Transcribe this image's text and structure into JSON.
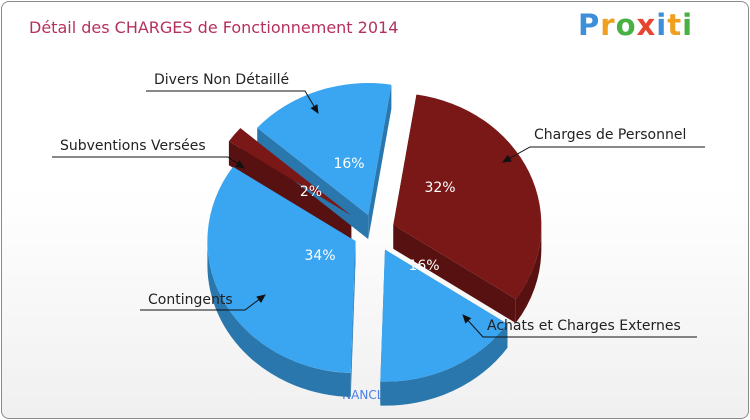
{
  "chart_data": {
    "type": "pie",
    "title": "Détail des CHARGES de Fonctionnement 2014",
    "subtitle": "NANCLARS",
    "slices": [
      {
        "name": "Charges de Personnel",
        "value": 32,
        "label": "32%",
        "color": "#7a1717"
      },
      {
        "name": "Achats et Charges Externes",
        "value": 16,
        "label": "16%",
        "color": "#3aa5f0"
      },
      {
        "name": "Contingents",
        "value": 34,
        "label": "34%",
        "color": "#3aa5f0"
      },
      {
        "name": "Subventions Versées",
        "value": 2,
        "label": "2%",
        "color": "#7a1717"
      },
      {
        "name": "Divers Non Détaillé",
        "value": 16,
        "label": "16%",
        "color": "#3aa5f0"
      }
    ]
  },
  "brand": {
    "letters": [
      "P",
      "r",
      "o",
      "x",
      "i",
      "t",
      "i"
    ],
    "colors": [
      "#3c8fd8",
      "#f0a020",
      "#49b043",
      "#e8452f",
      "#3c8fd8",
      "#f0a020",
      "#49b043"
    ]
  }
}
